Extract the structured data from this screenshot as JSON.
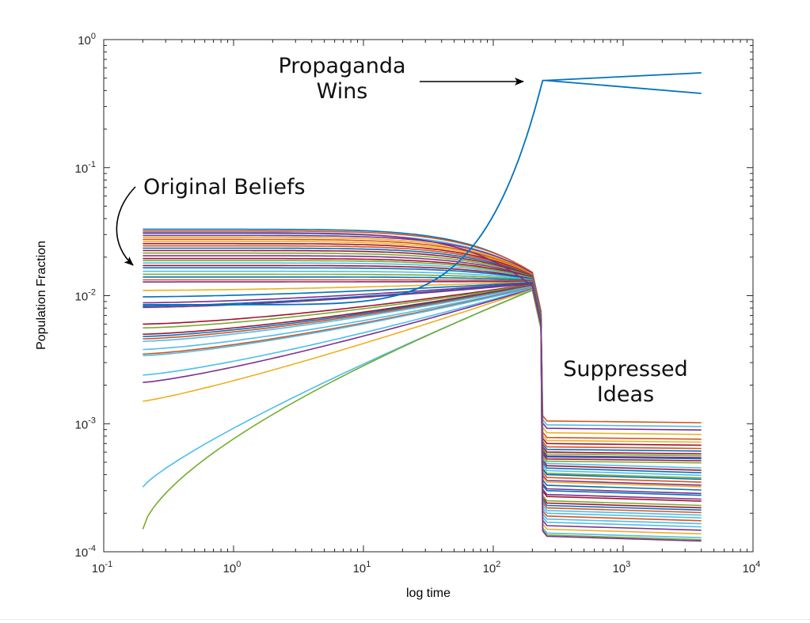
{
  "chart_data": {
    "type": "line",
    "title": "",
    "xlabel": "log time",
    "ylabel": "Population Fraction",
    "xscale": "log",
    "yscale": "log",
    "xlim": [
      0.1,
      10000
    ],
    "ylim": [
      0.0001,
      1
    ],
    "grid": false,
    "legend": "none",
    "x_ticks": [
      {
        "value": 0.1,
        "base": "10",
        "exp": "-1"
      },
      {
        "value": 1,
        "base": "10",
        "exp": "0"
      },
      {
        "value": 10,
        "base": "10",
        "exp": "1"
      },
      {
        "value": 100,
        "base": "10",
        "exp": "2"
      },
      {
        "value": 1000,
        "base": "10",
        "exp": "3"
      },
      {
        "value": 10000,
        "base": "10",
        "exp": "4"
      }
    ],
    "y_ticks": [
      {
        "value": 1,
        "base": "10",
        "exp": "0"
      },
      {
        "value": 0.1,
        "base": "10",
        "exp": "-1"
      },
      {
        "value": 0.01,
        "base": "10",
        "exp": "-2"
      },
      {
        "value": 0.001,
        "base": "10",
        "exp": "-3"
      },
      {
        "value": 0.0001,
        "base": "10",
        "exp": "-4"
      }
    ],
    "annotations": [
      {
        "id": "propaganda",
        "lines": [
          "Propaganda",
          "Wins"
        ],
        "points_to": {
          "x": 230,
          "y": 0.48
        }
      },
      {
        "id": "original",
        "lines": [
          "Original Beliefs"
        ],
        "points_to": {
          "x": 0.2,
          "y": 0.014
        }
      },
      {
        "id": "suppressed",
        "lines": [
          "Suppressed",
          "Ideas"
        ]
      }
    ],
    "t_start": 0.2,
    "t_converge": 200,
    "t_drop": 240,
    "t_end": 4000,
    "palette": [
      "#0072BD",
      "#D95319",
      "#EDB120",
      "#7E2F8E",
      "#77AC30",
      "#4DBEEE",
      "#A2142F"
    ],
    "propaganda_series": {
      "name": "Propaganda belief",
      "color": "#0072BD",
      "start": 0.0085,
      "peak": 0.48,
      "final_values": [
        0.55,
        0.38
      ]
    },
    "series": [
      {
        "start": 0.033,
        "converge": 0.015,
        "final": 0.00055,
        "color": "#0072BD"
      },
      {
        "start": 0.032,
        "converge": 0.0152,
        "final": 0.00105,
        "color": "#D95319"
      },
      {
        "start": 0.0305,
        "converge": 0.0148,
        "final": 0.00098,
        "color": "#4DBEEE"
      },
      {
        "start": 0.0295,
        "converge": 0.015,
        "final": 0.00092,
        "color": "#7E2F8E"
      },
      {
        "start": 0.0285,
        "converge": 0.0147,
        "final": 0.00085,
        "color": "#EDB120"
      },
      {
        "start": 0.0275,
        "converge": 0.0146,
        "final": 0.00078,
        "color": "#D95319"
      },
      {
        "start": 0.0265,
        "converge": 0.0145,
        "final": 0.00074,
        "color": "#EDB120"
      },
      {
        "start": 0.0255,
        "converge": 0.0144,
        "final": 0.0007,
        "color": "#A2142F"
      },
      {
        "start": 0.0245,
        "converge": 0.0143,
        "final": 0.00066,
        "color": "#D95319"
      },
      {
        "start": 0.0235,
        "converge": 0.0142,
        "final": 0.00063,
        "color": "#0072BD"
      },
      {
        "start": 0.0225,
        "converge": 0.0141,
        "final": 0.0006,
        "color": "#A2142F"
      },
      {
        "start": 0.0215,
        "converge": 0.014,
        "final": 0.00058,
        "color": "#77AC30"
      },
      {
        "start": 0.0205,
        "converge": 0.0139,
        "final": 0.00056,
        "color": "#7E2F8E"
      },
      {
        "start": 0.0195,
        "converge": 0.0138,
        "final": 0.00053,
        "color": "#A2142F"
      },
      {
        "start": 0.0188,
        "converge": 0.0137,
        "final": 0.00051,
        "color": "#77AC30"
      },
      {
        "start": 0.018,
        "converge": 0.0136,
        "final": 0.00049,
        "color": "#4DBEEE"
      },
      {
        "start": 0.0172,
        "converge": 0.0135,
        "final": 0.00047,
        "color": "#A2142F"
      },
      {
        "start": 0.0165,
        "converge": 0.0134,
        "final": 0.00045,
        "color": "#0072BD"
      },
      {
        "start": 0.0155,
        "converge": 0.0133,
        "final": 0.00043,
        "color": "#4DBEEE"
      },
      {
        "start": 0.0147,
        "converge": 0.0132,
        "final": 0.00041,
        "color": "#77AC30"
      },
      {
        "start": 0.014,
        "converge": 0.0131,
        "final": 0.0004,
        "color": "#0072BD"
      },
      {
        "start": 0.0133,
        "converge": 0.013,
        "final": 0.00038,
        "color": "#D95319"
      },
      {
        "start": 0.0128,
        "converge": 0.0129,
        "final": 0.00036,
        "color": "#7E2F8E"
      },
      {
        "start": 0.011,
        "converge": 0.0128,
        "final": 0.00035,
        "color": "#EDB120"
      },
      {
        "start": 0.0098,
        "converge": 0.0127,
        "final": 0.00033,
        "color": "#0072BD"
      },
      {
        "start": 0.0088,
        "converge": 0.0126,
        "final": 0.00031,
        "color": "#7E2F8E"
      },
      {
        "start": 0.0083,
        "converge": 0.0125,
        "final": 0.0003,
        "color": "#0072BD"
      },
      {
        "start": 0.0081,
        "converge": 0.0124,
        "final": 0.00028,
        "color": "#7E2F8E"
      },
      {
        "start": 0.006,
        "converge": 0.0123,
        "final": 0.00027,
        "color": "#A2142F"
      },
      {
        "start": 0.0056,
        "converge": 0.0122,
        "final": 0.00025,
        "color": "#77AC30"
      },
      {
        "start": 0.005,
        "converge": 0.0121,
        "final": 0.00024,
        "color": "#A2142F"
      },
      {
        "start": 0.0048,
        "converge": 0.012,
        "final": 0.00023,
        "color": "#0072BD"
      },
      {
        "start": 0.0046,
        "converge": 0.0119,
        "final": 0.00022,
        "color": "#D95319"
      },
      {
        "start": 0.0044,
        "converge": 0.0118,
        "final": 0.00021,
        "color": "#4DBEEE"
      },
      {
        "start": 0.0038,
        "converge": 0.0117,
        "final": 0.0002,
        "color": "#4DBEEE"
      },
      {
        "start": 0.0035,
        "converge": 0.0116,
        "final": 0.00019,
        "color": "#D95319"
      },
      {
        "start": 0.0034,
        "converge": 0.0115,
        "final": 0.00018,
        "color": "#4DBEEE"
      },
      {
        "start": 0.0024,
        "converge": 0.0114,
        "final": 0.00017,
        "color": "#4DBEEE"
      },
      {
        "start": 0.0021,
        "converge": 0.0113,
        "final": 0.00016,
        "color": "#7E2F8E"
      },
      {
        "start": 0.0015,
        "converge": 0.0112,
        "final": 0.00015,
        "color": "#EDB120"
      },
      {
        "start": 0.00032,
        "converge": 0.0111,
        "final": 0.00014,
        "color": "#4DBEEE"
      },
      {
        "start": 0.00015,
        "converge": 0.011,
        "final": 0.000135,
        "color": "#77AC30"
      },
      {
        "start": 0.031,
        "converge": 0.0118,
        "final": 0.000132,
        "color": "#7E2F8E"
      }
    ]
  }
}
